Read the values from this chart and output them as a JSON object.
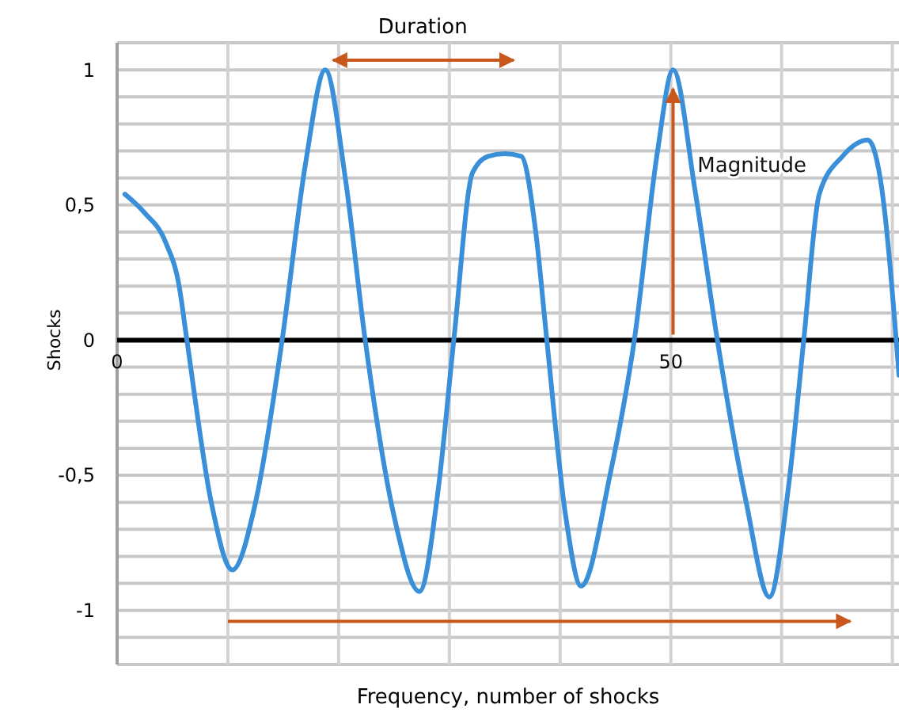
{
  "chart_data": {
    "type": "line",
    "xlabel": "Frequency, number of shocks",
    "ylabel": "Shocks",
    "annotations": [
      "Duration",
      "Magnitude"
    ],
    "series": [
      {
        "color": "#3a8fd9",
        "x": [
          0.7,
          2.5,
          4.4,
          5.6,
          6.3,
          8.5,
          10.4,
          12.5,
          14.9,
          17,
          18.8,
          20.6,
          22.4,
          25,
          27.3,
          29,
          30.4,
          32.1,
          33.5,
          35,
          36.5,
          37.8,
          38.8,
          40.5,
          41.9,
          44.5,
          46.7,
          48.8,
          50.2,
          52.2,
          54.2,
          56.8,
          58.9,
          60.6,
          62,
          63.4,
          65.5,
          67.8,
          68.9,
          70.6
        ],
        "values": [
          0.54,
          0.47,
          0.36,
          0.2,
          0,
          -0.6,
          -0.85,
          -0.6,
          0,
          0.65,
          1,
          0.6,
          0,
          -0.65,
          -0.93,
          -0.55,
          0,
          0.62,
          0.68,
          0.69,
          0.68,
          0.4,
          0,
          -0.65,
          -0.91,
          -0.5,
          0,
          0.7,
          1,
          0.55,
          0,
          -0.6,
          -0.95,
          -0.55,
          0,
          0.54,
          0.68,
          0.74,
          0.6,
          -0.13
        ]
      }
    ],
    "xlim": [
      0,
      70.6
    ],
    "xticks": [
      0,
      {
        "value": 10,
        "label": null
      },
      {
        "value": 20,
        "label": null
      },
      {
        "value": 30,
        "label": null
      },
      {
        "value": 40,
        "label": null
      },
      50,
      {
        "value": 60,
        "label": null
      },
      {
        "value": 70,
        "label": null
      }
    ],
    "ylim": [
      -1.2,
      1.1
    ],
    "yticks": [
      {
        "value": -1.2,
        "label": null
      },
      {
        "value": -1.1,
        "label": null
      },
      {
        "value": -1,
        "label": "-1"
      },
      {
        "value": -0.9,
        "label": null
      },
      {
        "value": -0.8,
        "label": null
      },
      {
        "value": -0.7,
        "label": null
      },
      {
        "value": -0.6,
        "label": null
      },
      {
        "value": -0.5,
        "label": "-0,5"
      },
      {
        "value": -0.4,
        "label": null
      },
      {
        "value": -0.3,
        "label": null
      },
      {
        "value": -0.2,
        "label": null
      },
      {
        "value": -0.1,
        "label": null
      },
      {
        "value": 0,
        "label": "0"
      },
      {
        "value": 0.1,
        "label": null
      },
      {
        "value": 0.2,
        "label": null
      },
      {
        "value": 0.3,
        "label": null
      },
      {
        "value": 0.4,
        "label": null
      },
      {
        "value": 0.5,
        "label": "0,5"
      },
      {
        "value": 0.6,
        "label": null
      },
      {
        "value": 0.7,
        "label": null
      },
      {
        "value": 0.8,
        "label": null
      },
      {
        "value": 0.9,
        "label": null
      },
      {
        "value": 1,
        "label": "1"
      },
      {
        "value": 1.1,
        "label": null
      }
    ],
    "grid": true,
    "line_style": "solid"
  }
}
